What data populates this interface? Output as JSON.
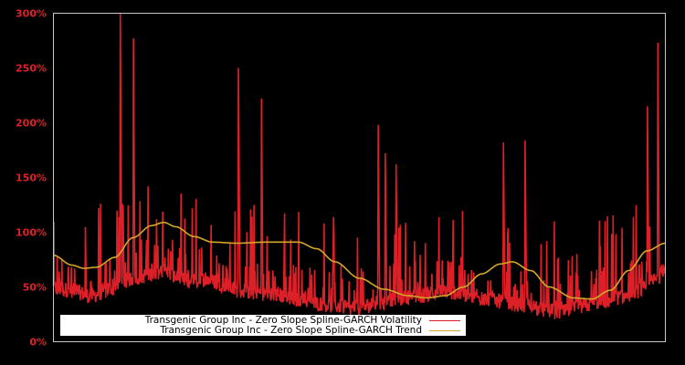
{
  "chart_data": {
    "type": "line",
    "title": "",
    "xlabel": "",
    "ylabel": "",
    "ylim": [
      0,
      300
    ],
    "y_ticks": [
      "0%",
      "50%",
      "100%",
      "150%",
      "200%",
      "250%",
      "300%"
    ],
    "y_tick_values": [
      0,
      50,
      100,
      150,
      200,
      250,
      300
    ],
    "grid": false,
    "legend_position": "lower left (inside plot)",
    "background": "#000000",
    "series": [
      {
        "name": "Transgenic Group Inc - Zero Slope Spline-GARCH Volatility",
        "color": "#dd2027",
        "style": "dense spiky line",
        "x_frac": [
          0.0,
          0.03,
          0.06,
          0.1,
          0.11,
          0.14,
          0.16,
          0.18,
          0.2,
          0.22,
          0.25,
          0.28,
          0.3,
          0.33,
          0.36,
          0.4,
          0.43,
          0.46,
          0.48,
          0.5,
          0.53,
          0.56,
          0.6,
          0.63,
          0.66,
          0.7,
          0.73,
          0.77,
          0.8,
          0.83,
          0.86,
          0.9,
          0.93,
          0.96,
          0.985,
          1.0
        ],
        "baseline_pct": [
          42,
          40,
          35,
          42,
          48,
          52,
          55,
          58,
          52,
          48,
          50,
          45,
          40,
          38,
          36,
          32,
          28,
          26,
          24,
          24,
          28,
          32,
          35,
          40,
          38,
          32,
          30,
          26,
          22,
          20,
          25,
          30,
          34,
          40,
          50,
          60
        ],
        "peaks": [
          {
            "x_frac": 0.109,
            "value": 300
          },
          {
            "x_frac": 0.131,
            "value": 277
          },
          {
            "x_frac": 0.302,
            "value": 250
          },
          {
            "x_frac": 0.34,
            "value": 222
          },
          {
            "x_frac": 0.531,
            "value": 198
          },
          {
            "x_frac": 0.542,
            "value": 172
          },
          {
            "x_frac": 0.56,
            "value": 162
          },
          {
            "x_frac": 0.735,
            "value": 182
          },
          {
            "x_frac": 0.771,
            "value": 184
          },
          {
            "x_frac": 0.988,
            "value": 273
          },
          {
            "x_frac": 0.971,
            "value": 215
          }
        ]
      },
      {
        "name": "Transgenic Group Inc - Zero Slope Spline-GARCH Trend",
        "color": "#d4a62a",
        "x_frac": [
          0.0,
          0.03,
          0.05,
          0.07,
          0.1,
          0.13,
          0.16,
          0.18,
          0.2,
          0.23,
          0.26,
          0.3,
          0.35,
          0.4,
          0.43,
          0.46,
          0.5,
          0.54,
          0.58,
          0.61,
          0.64,
          0.67,
          0.7,
          0.73,
          0.75,
          0.78,
          0.81,
          0.85,
          0.88,
          0.91,
          0.94,
          0.97,
          1.0
        ],
        "values_pct": [
          79,
          70,
          67,
          68,
          77,
          95,
          106,
          109,
          105,
          96,
          91,
          90,
          91,
          91,
          85,
          73,
          58,
          48,
          42,
          40,
          42,
          50,
          62,
          71,
          73,
          65,
          50,
          40,
          39,
          47,
          65,
          83,
          90
        ]
      }
    ]
  },
  "legend": {
    "items": [
      {
        "label": "Transgenic Group Inc - Zero Slope Spline-GARCH Volatility",
        "color": "#dd2027"
      },
      {
        "label": "Transgenic Group Inc - Zero Slope Spline-GARCH Trend",
        "color": "#d4a62a"
      }
    ]
  },
  "colors": {
    "background": "#000000",
    "axis_border": "#c8c8c8",
    "tick_label": "#dd2027",
    "legend_bg": "#ffffff"
  }
}
